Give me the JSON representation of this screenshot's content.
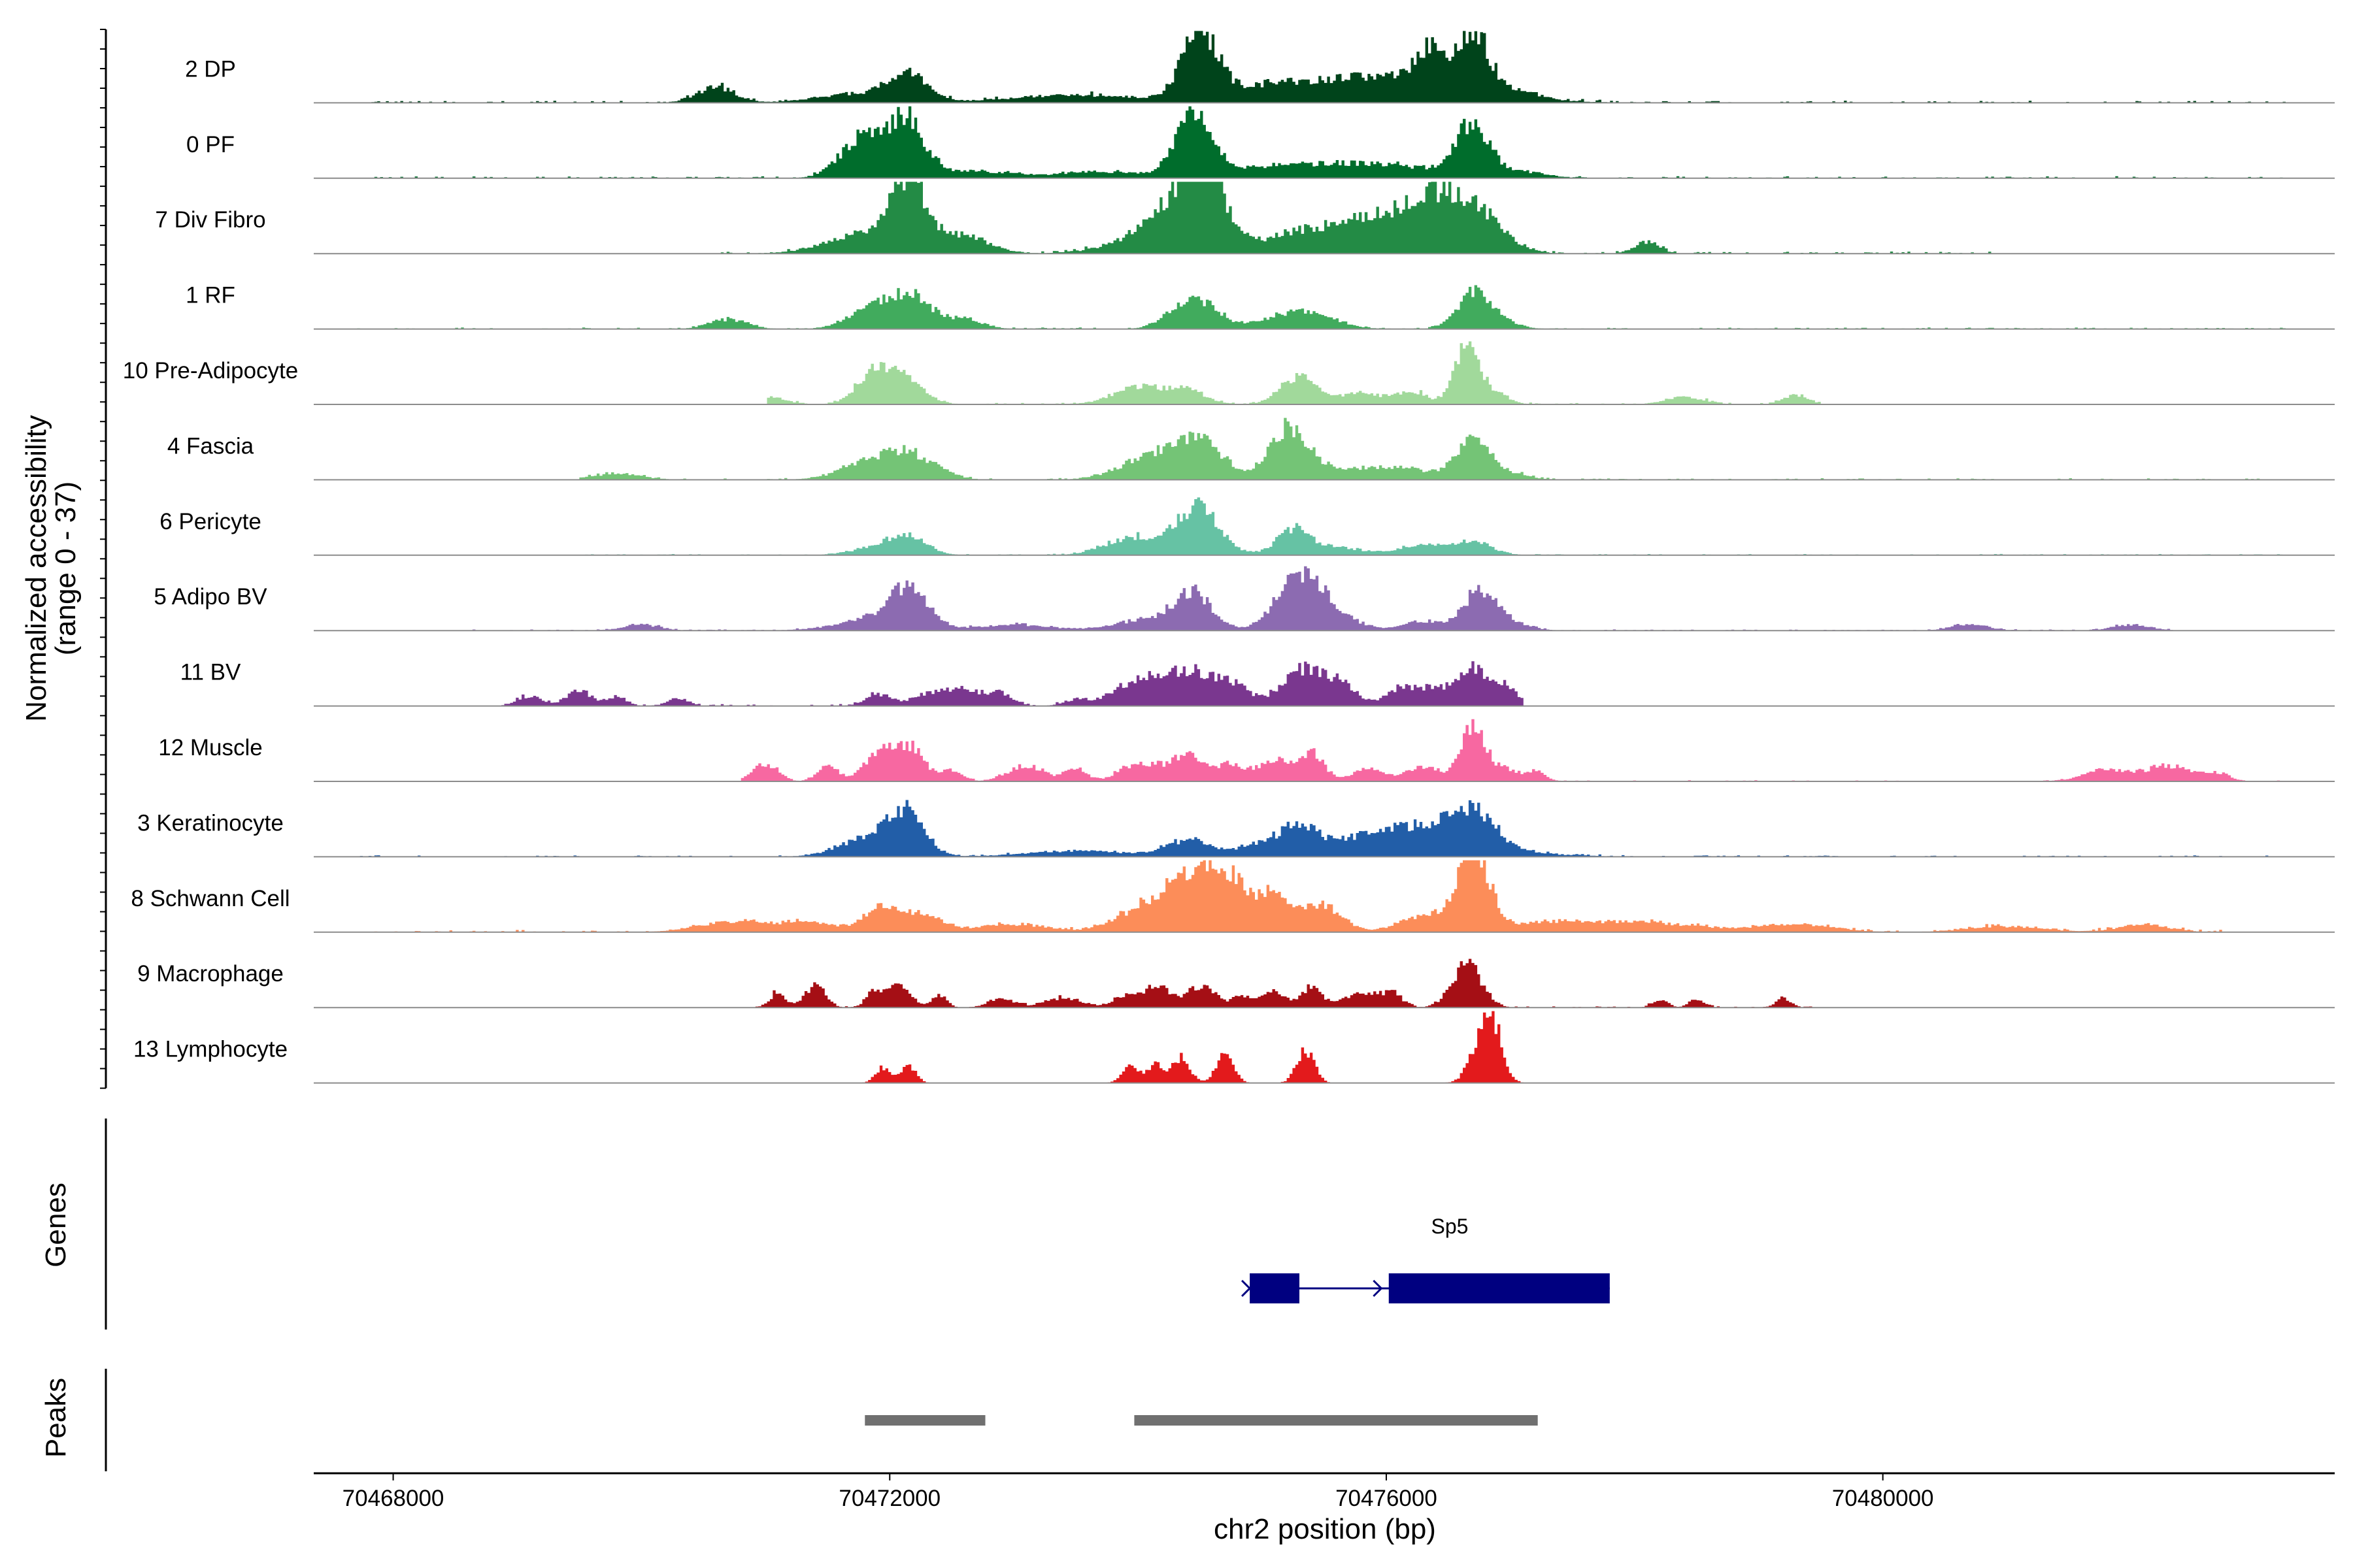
{
  "chart_data": {
    "type": "area",
    "title": "",
    "xlabel": "chr2 position (bp)",
    "ylabel": "Normalized accessibility",
    "ylabel_sub": "(range 0 - 37)",
    "ylim": [
      0,
      37
    ],
    "xlim": [
      70467360,
      70483640
    ],
    "x_ticks": [
      70468000,
      70472000,
      70476000,
      70480000
    ],
    "x_tick_labels": [
      "70468000",
      "70472000",
      "70476000",
      "70480000"
    ],
    "tracks": [
      {
        "name": "2 DP",
        "color": "#00441B",
        "noise": 0.06,
        "span": [
          70467700,
          70483250
        ],
        "peaks": [
          [
            70470600,
            150,
            8
          ],
          [
            70471800,
            350,
            5
          ],
          [
            70472150,
            150,
            12
          ],
          [
            70473500,
            500,
            4
          ],
          [
            70474500,
            140,
            34
          ],
          [
            70474900,
            400,
            5
          ],
          [
            70475400,
            400,
            6
          ],
          [
            70476100,
            400,
            7
          ],
          [
            70476350,
            100,
            17
          ],
          [
            70476700,
            130,
            30
          ],
          [
            70476300,
            600,
            6
          ],
          [
            70477100,
            150,
            3
          ]
        ]
      },
      {
        "name": "0 PF",
        "color": "#006D2C",
        "noise": 0.05,
        "span": [
          70467700,
          70483250
        ],
        "peaks": [
          [
            70471800,
            180,
            22
          ],
          [
            70472150,
            130,
            28
          ],
          [
            70472600,
            300,
            4
          ],
          [
            70473700,
            400,
            3
          ],
          [
            70474450,
            140,
            32
          ],
          [
            70474900,
            350,
            4
          ],
          [
            70475500,
            400,
            5
          ],
          [
            70476100,
            400,
            5
          ],
          [
            70476700,
            130,
            27
          ],
          [
            70477100,
            200,
            3
          ]
        ]
      },
      {
        "name": "7 Div Fibro",
        "color": "#238B45",
        "noise": 0.06,
        "span": [
          70470600,
          70481000
        ],
        "peaks": [
          [
            70471800,
            300,
            10
          ],
          [
            70472150,
            140,
            35
          ],
          [
            70472600,
            200,
            9
          ],
          [
            70474300,
            200,
            16
          ],
          [
            70474550,
            150,
            37
          ],
          [
            70474200,
            350,
            10
          ],
          [
            70475200,
            250,
            8
          ],
          [
            70475600,
            250,
            7
          ],
          [
            70476100,
            350,
            18
          ],
          [
            70476500,
            250,
            20
          ],
          [
            70476800,
            200,
            10
          ],
          [
            70478100,
            100,
            6
          ]
        ]
      },
      {
        "name": "1 RF",
        "color": "#41AB5D",
        "noise": 0.04,
        "span": [
          70467700,
          70483250
        ],
        "peaks": [
          [
            70470700,
            150,
            5
          ],
          [
            70471900,
            200,
            12
          ],
          [
            70472200,
            150,
            14
          ],
          [
            70472600,
            150,
            5
          ],
          [
            70474450,
            180,
            16
          ],
          [
            70475300,
            250,
            9
          ],
          [
            70476700,
            130,
            18
          ],
          [
            70476900,
            150,
            4
          ]
        ]
      },
      {
        "name": "10 Pre-Adipocyte",
        "color": "#A1D99B",
        "noise": 0.04,
        "span": [
          70471000,
          70479500
        ],
        "peaks": [
          [
            70471000,
            150,
            4
          ],
          [
            70471900,
            150,
            18
          ],
          [
            70472150,
            150,
            9
          ],
          [
            70474000,
            200,
            9
          ],
          [
            70474400,
            150,
            7
          ],
          [
            70475300,
            150,
            14
          ],
          [
            70475800,
            150,
            6
          ],
          [
            70476200,
            120,
            7
          ],
          [
            70476650,
            100,
            30
          ],
          [
            70476900,
            100,
            5
          ],
          [
            70478400,
            150,
            4
          ],
          [
            70479300,
            100,
            5
          ]
        ]
      },
      {
        "name": "4 Fascia",
        "color": "#74C476",
        "noise": 0.04,
        "span": [
          70469500,
          70483250
        ],
        "peaks": [
          [
            70469800,
            200,
            3
          ],
          [
            70471900,
            250,
            10
          ],
          [
            70472200,
            200,
            9
          ],
          [
            70474100,
            250,
            11
          ],
          [
            70474500,
            200,
            18
          ],
          [
            70475200,
            150,
            24
          ],
          [
            70475500,
            250,
            6
          ],
          [
            70476100,
            250,
            6
          ],
          [
            70476700,
            130,
            22
          ],
          [
            70477000,
            150,
            3
          ]
        ]
      },
      {
        "name": "6 Pericyte",
        "color": "#66C2A4",
        "noise": 0.03,
        "span": [
          70469500,
          70483250
        ],
        "peaks": [
          [
            70471900,
            200,
            4
          ],
          [
            70472150,
            150,
            9
          ],
          [
            70473900,
            200,
            6
          ],
          [
            70474500,
            150,
            20
          ],
          [
            70474300,
            300,
            7
          ],
          [
            70475250,
            130,
            13
          ],
          [
            70475600,
            200,
            4
          ],
          [
            70476300,
            200,
            5
          ],
          [
            70476700,
            150,
            7
          ]
        ]
      },
      {
        "name": "5 Adipo BV",
        "color": "#8C6BB1",
        "noise": 0.03,
        "span": [
          70468600,
          70482400
        ],
        "peaks": [
          [
            70470000,
            150,
            3
          ],
          [
            70471900,
            300,
            6
          ],
          [
            70472150,
            150,
            18
          ],
          [
            70473000,
            300,
            3
          ],
          [
            70474100,
            250,
            6
          ],
          [
            70474450,
            150,
            18
          ],
          [
            70475300,
            180,
            28
          ],
          [
            70475600,
            200,
            6
          ],
          [
            70476300,
            150,
            5
          ],
          [
            70476750,
            130,
            20
          ],
          [
            70477000,
            150,
            4
          ],
          [
            70480700,
            150,
            3
          ],
          [
            70482000,
            150,
            3
          ]
        ]
      },
      {
        "name": "11 BV",
        "color": "#7A378F",
        "noise": 0.05,
        "span": [
          70468800,
          70477100
        ],
        "peaks": [
          [
            70469100,
            100,
            5
          ],
          [
            70469500,
            100,
            8
          ],
          [
            70469800,
            80,
            5
          ],
          [
            70470300,
            80,
            4
          ],
          [
            70471900,
            100,
            6
          ],
          [
            70472300,
            150,
            5
          ],
          [
            70472600,
            150,
            8
          ],
          [
            70472900,
            100,
            6
          ],
          [
            70473500,
            100,
            3
          ],
          [
            70474000,
            200,
            12
          ],
          [
            70474400,
            200,
            16
          ],
          [
            70474750,
            150,
            10
          ],
          [
            70475300,
            150,
            17
          ],
          [
            70475600,
            150,
            12
          ],
          [
            70476100,
            100,
            8
          ],
          [
            70476400,
            150,
            10
          ],
          [
            70476700,
            100,
            18
          ],
          [
            70476950,
            100,
            10
          ]
        ]
      },
      {
        "name": "12 Muscle",
        "color": "#F768A1",
        "noise": 0.03,
        "span": [
          70470800,
          70483250
        ],
        "peaks": [
          [
            70471000,
            100,
            9
          ],
          [
            70471500,
            80,
            9
          ],
          [
            70471900,
            120,
            13
          ],
          [
            70472150,
            120,
            18
          ],
          [
            70472500,
            80,
            6
          ],
          [
            70473100,
            150,
            8
          ],
          [
            70473500,
            80,
            7
          ],
          [
            70474000,
            150,
            9
          ],
          [
            70474400,
            150,
            13
          ],
          [
            70474750,
            100,
            8
          ],
          [
            70475100,
            150,
            10
          ],
          [
            70475400,
            100,
            14
          ],
          [
            70475850,
            120,
            6
          ],
          [
            70476300,
            150,
            7
          ],
          [
            70476700,
            100,
            27
          ],
          [
            70476950,
            100,
            6
          ],
          [
            70477200,
            80,
            5
          ],
          [
            70481800,
            180,
            6
          ],
          [
            70482300,
            180,
            8
          ],
          [
            70482700,
            100,
            4
          ]
        ]
      },
      {
        "name": "3 Keratinocyte",
        "color": "#225EA8",
        "noise": 0.04,
        "span": [
          70467700,
          70483250
        ],
        "peaks": [
          [
            70471900,
            250,
            12
          ],
          [
            70472150,
            130,
            17
          ],
          [
            70473500,
            400,
            3
          ],
          [
            70474400,
            180,
            8
          ],
          [
            70475000,
            200,
            6
          ],
          [
            70475300,
            150,
            12
          ],
          [
            70475800,
            300,
            6
          ],
          [
            70476300,
            300,
            9
          ],
          [
            70476700,
            180,
            17
          ],
          [
            70476400,
            600,
            5
          ]
        ]
      },
      {
        "name": "8 Schwann Cell",
        "color": "#FC8D59",
        "noise": 0.06,
        "span": [
          70467700,
          70482800
        ],
        "peaks": [
          [
            70470800,
            300,
            6
          ],
          [
            70471400,
            200,
            4
          ],
          [
            70471950,
            150,
            13
          ],
          [
            70472300,
            150,
            7
          ],
          [
            70473000,
            300,
            4
          ],
          [
            70474000,
            200,
            10
          ],
          [
            70474350,
            200,
            18
          ],
          [
            70474650,
            200,
            30
          ],
          [
            70475100,
            150,
            17
          ],
          [
            70475500,
            150,
            13
          ],
          [
            70476300,
            200,
            8
          ],
          [
            70476700,
            130,
            40
          ],
          [
            70477400,
            400,
            5
          ],
          [
            70478200,
            400,
            4
          ],
          [
            70479300,
            300,
            4
          ],
          [
            70481000,
            300,
            3
          ],
          [
            70482100,
            200,
            4
          ]
        ]
      },
      {
        "name": "9 Macrophage",
        "color": "#A50F15",
        "noise": 0.04,
        "span": [
          70470700,
          70479600
        ],
        "peaks": [
          [
            70471100,
            60,
            8
          ],
          [
            70471400,
            80,
            11
          ],
          [
            70471900,
            80,
            9
          ],
          [
            70472100,
            80,
            12
          ],
          [
            70472400,
            60,
            6
          ],
          [
            70472900,
            100,
            5
          ],
          [
            70473400,
            150,
            5
          ],
          [
            70473900,
            100,
            6
          ],
          [
            70474150,
            100,
            11
          ],
          [
            70474500,
            120,
            11
          ],
          [
            70474850,
            80,
            6
          ],
          [
            70475100,
            100,
            8
          ],
          [
            70475400,
            80,
            10
          ],
          [
            70475800,
            150,
            7
          ],
          [
            70476050,
            80,
            6
          ],
          [
            70476650,
            120,
            22
          ],
          [
            70478200,
            60,
            4
          ],
          [
            70478500,
            60,
            4
          ],
          [
            70479200,
            60,
            5
          ]
        ]
      },
      {
        "name": "13 Lymphocyte",
        "color": "#E31A1C",
        "noise": 0.0,
        "span": [
          70467700,
          70483250
        ],
        "peaks": [
          [
            70471950,
            60,
            8
          ],
          [
            70472150,
            60,
            9
          ],
          [
            70473950,
            70,
            9
          ],
          [
            70474150,
            60,
            10
          ],
          [
            70474350,
            70,
            13
          ],
          [
            70474700,
            70,
            14
          ],
          [
            70475350,
            70,
            17
          ],
          [
            70476800,
            100,
            30
          ],
          [
            70476900,
            50,
            10
          ]
        ]
      }
    ],
    "genes": {
      "title": "Genes",
      "items": [
        {
          "name": "Sp5",
          "strand": "+",
          "color": "#000080",
          "start": 70474900,
          "end": 70477800,
          "exons": [
            [
              70474900,
              70475300
            ],
            [
              70476020,
              70477800
            ]
          ]
        }
      ]
    },
    "peaks": {
      "title": "Peaks",
      "color": "#707070",
      "regions": [
        [
          70471800,
          70472770
        ],
        [
          70473970,
          70477220
        ]
      ]
    }
  }
}
